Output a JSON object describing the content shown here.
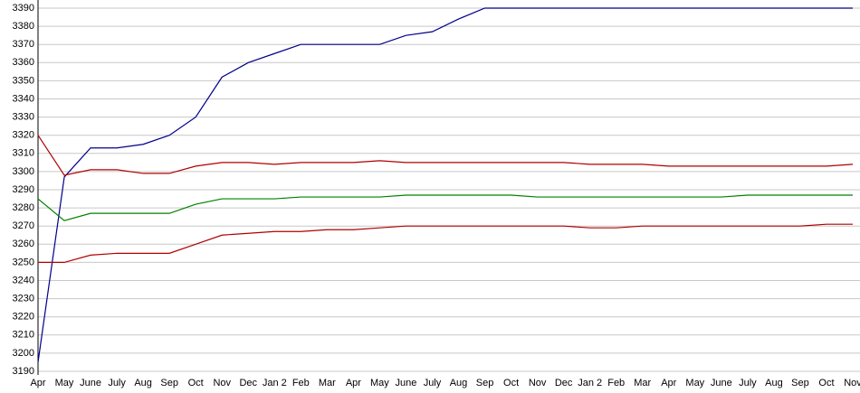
{
  "chart_data": {
    "type": "line",
    "categories": [
      "Apr",
      "May",
      "June",
      "July",
      "Aug",
      "Sep",
      "Oct",
      "Nov",
      "Dec",
      "Jan  2",
      "Feb",
      "Mar",
      "Apr",
      "May",
      "June",
      "July",
      "Aug",
      "Sep",
      "Oct",
      "Nov",
      "Dec",
      "Jan  2",
      "Feb",
      "Mar",
      "Apr",
      "May",
      "June",
      "July",
      "Aug",
      "Sep",
      "Oct",
      "Nov"
    ],
    "series": [
      {
        "color": "#00008b",
        "values": [
          3195,
          3297,
          3313,
          3313,
          3315,
          3320,
          3330,
          3352,
          3360,
          3365,
          3370,
          3370,
          3370,
          3370,
          3375,
          3377,
          3384,
          3390,
          3390,
          3390,
          3390,
          3390,
          3390,
          3390,
          3390,
          3390,
          3390,
          3390,
          3390,
          3390,
          3390,
          3390
        ]
      },
      {
        "color": "#b00000",
        "values": [
          3320,
          3298,
          3301,
          3301,
          3299,
          3299,
          3303,
          3305,
          3305,
          3304,
          3305,
          3305,
          3305,
          3306,
          3305,
          3305,
          3305,
          3305,
          3305,
          3305,
          3305,
          3304,
          3304,
          3304,
          3303,
          3303,
          3303,
          3303,
          3303,
          3303,
          3303,
          3304
        ]
      },
      {
        "color": "#008000",
        "values": [
          3285,
          3273,
          3277,
          3277,
          3277,
          3277,
          3282,
          3285,
          3285,
          3285,
          3286,
          3286,
          3286,
          3286,
          3287,
          3287,
          3287,
          3287,
          3287,
          3286,
          3286,
          3286,
          3286,
          3286,
          3286,
          3286,
          3286,
          3287,
          3287,
          3287,
          3287,
          3287
        ]
      },
      {
        "color": "#b00000",
        "values": [
          3250,
          3250,
          3254,
          3255,
          3255,
          3255,
          3260,
          3265,
          3266,
          3267,
          3267,
          3268,
          3268,
          3269,
          3270,
          3270,
          3270,
          3270,
          3270,
          3270,
          3270,
          3269,
          3269,
          3270,
          3270,
          3270,
          3270,
          3270,
          3270,
          3270,
          3271,
          3271
        ]
      }
    ],
    "ylim": [
      3190,
      3390
    ],
    "yticks": [
      3190,
      3200,
      3210,
      3220,
      3230,
      3240,
      3250,
      3260,
      3270,
      3280,
      3290,
      3300,
      3310,
      3320,
      3330,
      3340,
      3350,
      3360,
      3370,
      3380,
      3390
    ],
    "grid": true
  }
}
